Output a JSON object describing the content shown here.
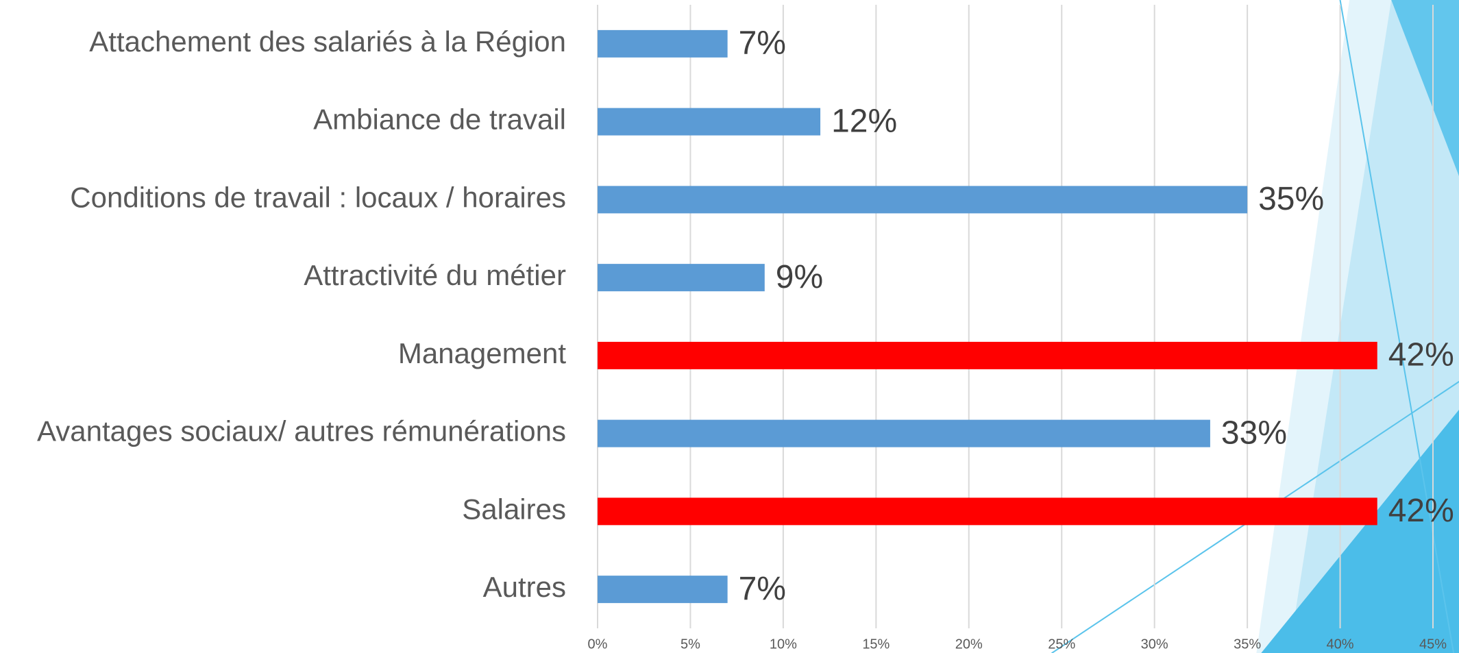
{
  "chart_data": {
    "type": "bar",
    "orientation": "horizontal",
    "categories": [
      "Attachement des salariés à la Région",
      "Ambiance de travail",
      "Conditions de travail : locaux / horaires",
      "Attractivité du métier",
      "Management",
      "Avantages sociaux/ autres rémunérations",
      "Salaires",
      "Autres"
    ],
    "values": [
      7,
      12,
      35,
      9,
      42,
      33,
      42,
      7
    ],
    "value_labels": [
      "7%",
      "12%",
      "35%",
      "9%",
      "42%",
      "33%",
      "42%",
      "7%"
    ],
    "colors": [
      "#5b9bd5",
      "#5b9bd5",
      "#5b9bd5",
      "#5b9bd5",
      "#ff0000",
      "#5b9bd5",
      "#ff0000",
      "#5b9bd5"
    ],
    "xlim": [
      0,
      45
    ],
    "xticks": [
      {
        "value": 0,
        "label": "0%"
      },
      {
        "value": 5,
        "label": "5%"
      },
      {
        "value": 10,
        "label": "10%"
      },
      {
        "value": 15,
        "label": "15%"
      },
      {
        "value": 20,
        "label": "20%"
      },
      {
        "value": 25,
        "label": "25%"
      },
      {
        "value": 30,
        "label": "30%"
      },
      {
        "value": 35,
        "label": "35%"
      },
      {
        "value": 40,
        "label": "40%"
      },
      {
        "value": 45,
        "label": "45%"
      }
    ],
    "grid": true
  }
}
